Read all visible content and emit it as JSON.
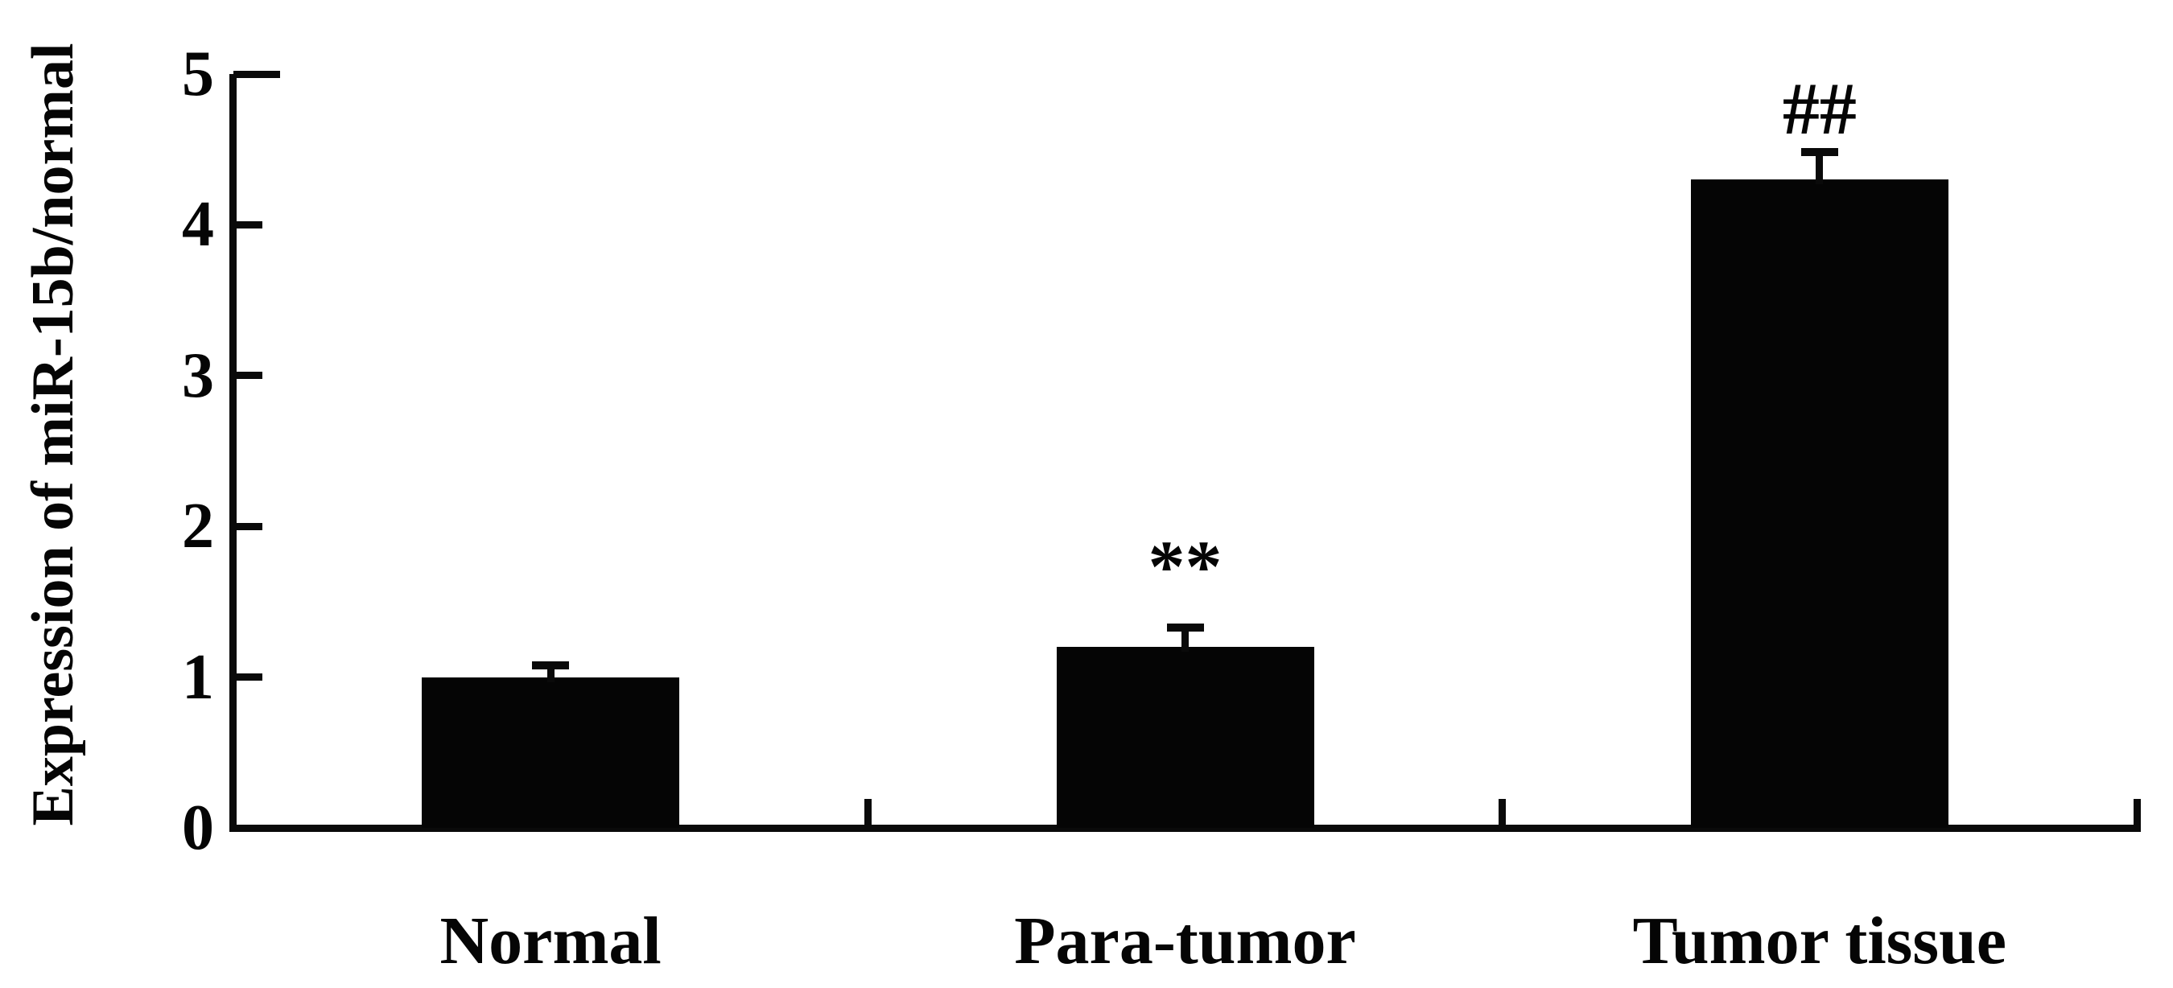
{
  "figure": {
    "background_color": "#ffffff",
    "ink_color": "#050505"
  },
  "chart_data": {
    "type": "bar",
    "title": "",
    "xlabel": "",
    "ylabel": "Expression of miR-15b/normal",
    "categories": [
      "Normal",
      "Para-tumor",
      "Tumor tissue"
    ],
    "values": [
      1.0,
      1.2,
      4.3
    ],
    "error_plus": [
      0.08,
      0.13,
      0.18
    ],
    "annotations": [
      "",
      "**",
      "##"
    ],
    "yticks": [
      0,
      1,
      2,
      3,
      4,
      5
    ],
    "ylim": [
      0,
      5
    ],
    "bar_color": "#050505",
    "grid": false,
    "legend_position": "none",
    "error_bars": "upper only",
    "tick_direction": "inward"
  }
}
